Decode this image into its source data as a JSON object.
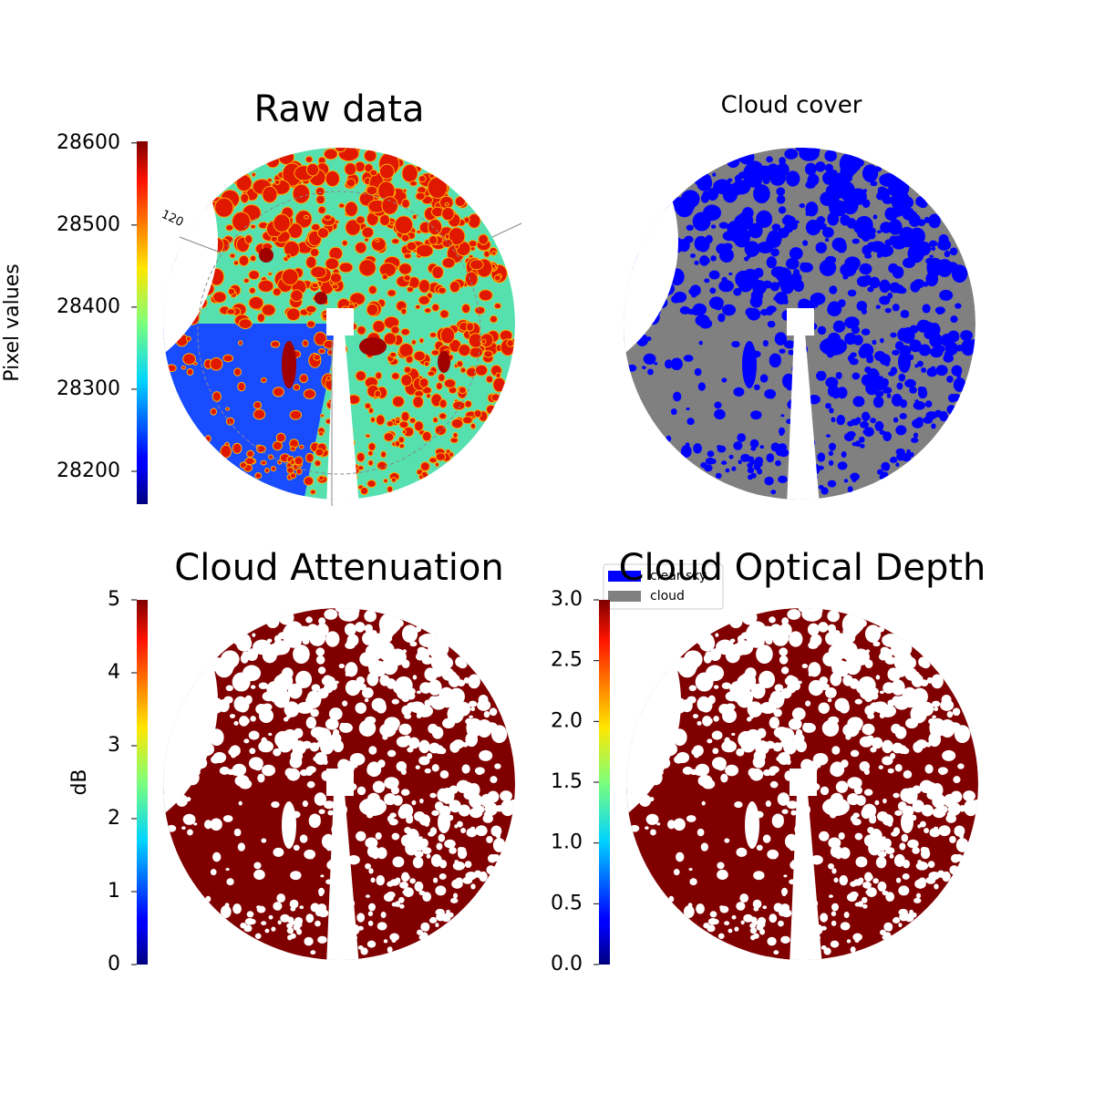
{
  "chart_data": [
    {
      "type": "image",
      "title": "Raw data",
      "colorbar_label": "Pixel values",
      "colormap": "jet",
      "ylim": [
        28160,
        28602
      ],
      "yticks": [
        28200,
        28300,
        28400,
        28500,
        28600
      ],
      "annotations": [
        "120"
      ]
    },
    {
      "type": "image",
      "title": "Cloud cover",
      "series": [
        {
          "name": "clear sky",
          "color": "#0000ff"
        },
        {
          "name": "cloud",
          "color": "#808080"
        }
      ]
    },
    {
      "type": "image",
      "title": "Cloud Attenuation",
      "colorbar_label": "dB",
      "colormap": "jet",
      "ylim": [
        0,
        5
      ],
      "yticks": [
        0,
        1,
        2,
        3,
        4,
        5
      ]
    },
    {
      "type": "image",
      "title": "Cloud Optical Depth",
      "colormap": "jet",
      "ylim": [
        0,
        3
      ],
      "yticks": [
        {
          "value": 0,
          "label": "0.0"
        },
        {
          "value": 0.5,
          "label": "0.5"
        },
        {
          "value": 1,
          "label": "1.0"
        },
        {
          "value": 1.5,
          "label": "1.5"
        },
        {
          "value": 2,
          "label": "2.0"
        },
        {
          "value": 2.5,
          "label": "2.5"
        },
        {
          "value": 3,
          "label": "3.0"
        }
      ]
    }
  ]
}
